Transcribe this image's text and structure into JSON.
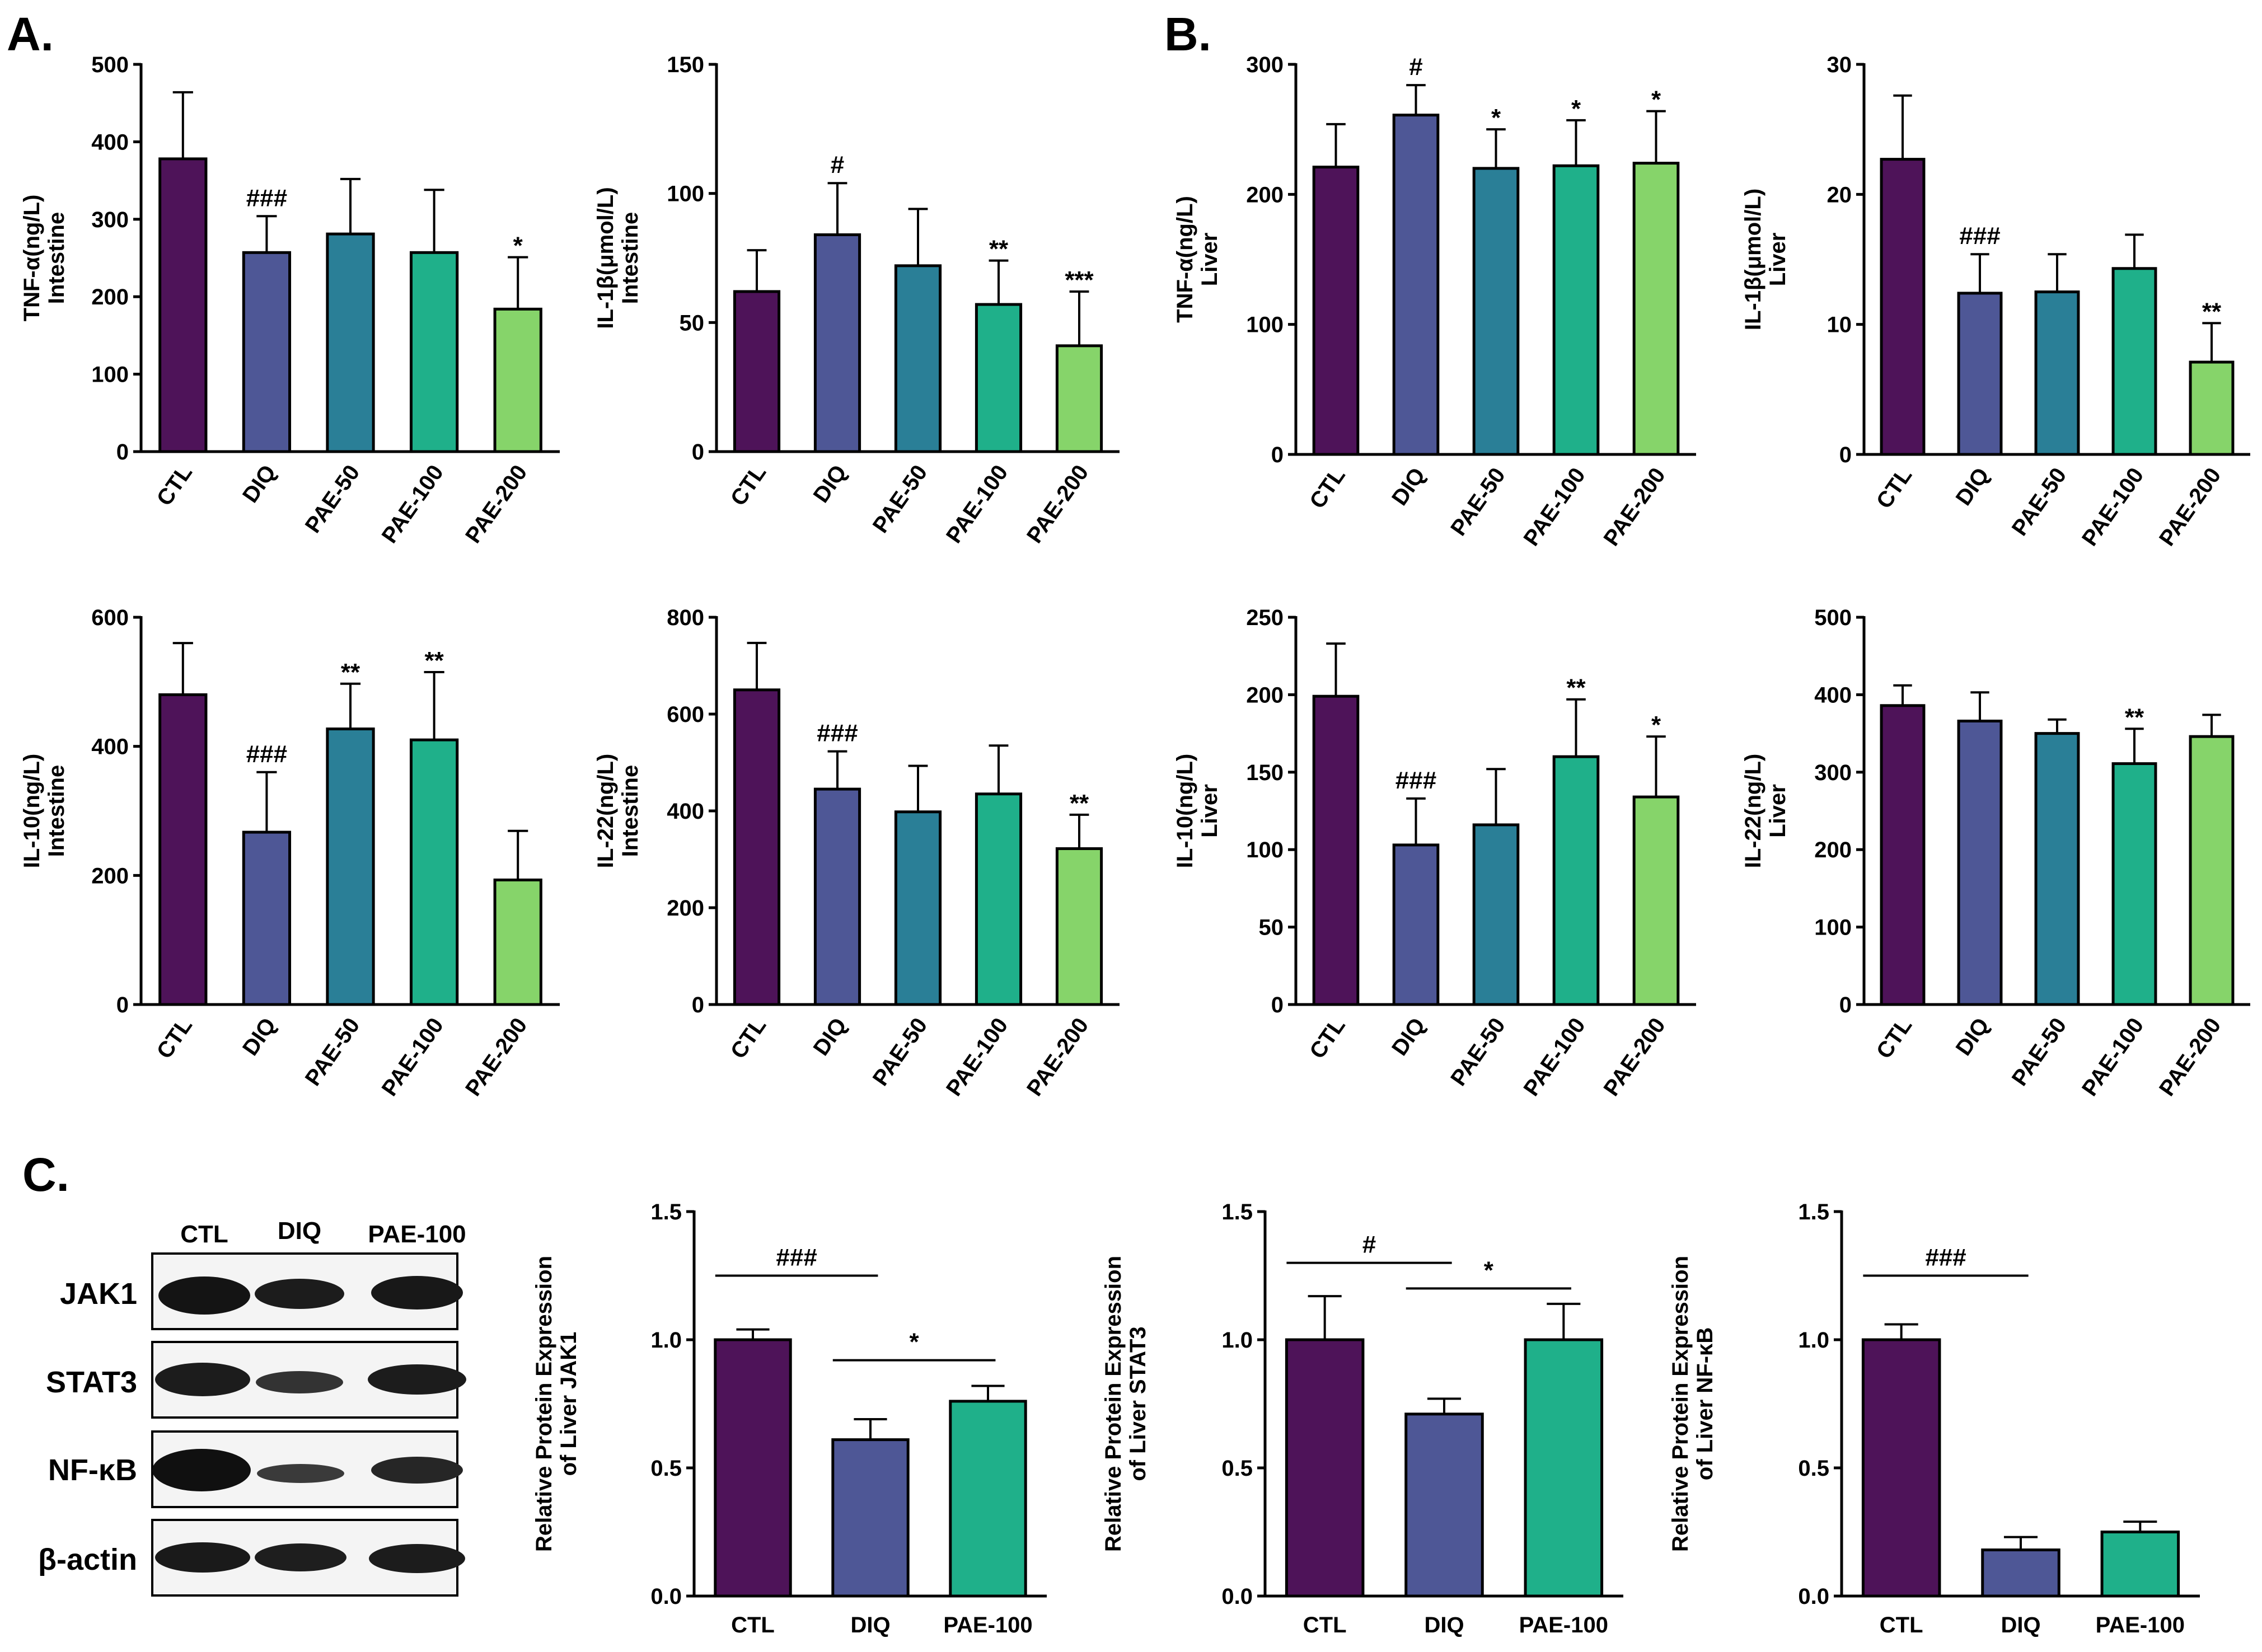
{
  "panel_labels": {
    "a": "A.",
    "b": "B.",
    "c": "C."
  },
  "colors": {
    "CTL": "#4e1359",
    "DIQ": "#4e5796",
    "PAE-50": "#2a7f97",
    "PAE-100": "#1fb08a",
    "PAE-200": "#86d46a",
    "axis": "#000000",
    "error": "#000000"
  },
  "blot": {
    "columns": [
      "CTL",
      "DIQ",
      "PAE-100"
    ],
    "rows": [
      "JAK1",
      "STAT3",
      "NF-κB",
      "β-actin"
    ]
  },
  "chart_data": [
    {
      "id": "intestine-tnf",
      "type": "bar",
      "ylabel": [
        "TNF-α(ng/L)",
        "Intestine"
      ],
      "categories": [
        "CTL",
        "DIQ",
        "PAE-50",
        "PAE-100",
        "PAE-200"
      ],
      "values": [
        378,
        257,
        281,
        257,
        184
      ],
      "errors": [
        86,
        47,
        71,
        81,
        67
      ],
      "annotations": [
        "",
        "###",
        "",
        "",
        "*"
      ],
      "ylim": [
        0,
        500
      ],
      "yticks": [
        "0",
        "100",
        "200",
        "300",
        "400",
        "500"
      ]
    },
    {
      "id": "intestine-il1b",
      "type": "bar",
      "ylabel": [
        "IL-1β(μmol/L)",
        "Intestine"
      ],
      "categories": [
        "CTL",
        "DIQ",
        "PAE-50",
        "PAE-100",
        "PAE-200"
      ],
      "values": [
        62,
        84,
        72,
        57,
        41
      ],
      "errors": [
        16,
        20,
        22,
        17,
        21
      ],
      "annotations": [
        "",
        "#",
        "",
        "**",
        "***"
      ],
      "ylim": [
        0,
        150
      ],
      "yticks": [
        "0",
        "50",
        "100",
        "150"
      ]
    },
    {
      "id": "liver-tnf",
      "type": "bar",
      "ylabel": [
        "TNF-α(ng/L)",
        "Liver"
      ],
      "categories": [
        "CTL",
        "DIQ",
        "PAE-50",
        "PAE-100",
        "PAE-200"
      ],
      "values": [
        221,
        261,
        220,
        222,
        224
      ],
      "errors": [
        33,
        23,
        30,
        35,
        40
      ],
      "annotations": [
        "",
        "#",
        "*",
        "*",
        "*"
      ],
      "ylim": [
        0,
        300
      ],
      "yticks": [
        "0",
        "100",
        "200",
        "300"
      ]
    },
    {
      "id": "liver-il1b",
      "type": "bar",
      "ylabel": [
        "IL-1β(μmol/L)",
        "Liver"
      ],
      "categories": [
        "CTL",
        "DIQ",
        "PAE-50",
        "PAE-100",
        "PAE-200"
      ],
      "values": [
        22.7,
        12.4,
        12.5,
        14.3,
        7.1
      ],
      "errors": [
        4.9,
        3.0,
        2.9,
        2.6,
        3.0
      ],
      "annotations": [
        "",
        "###",
        "",
        "",
        "**"
      ],
      "ylim": [
        0,
        30
      ],
      "yticks": [
        "0",
        "10",
        "20",
        "30"
      ]
    },
    {
      "id": "intestine-il10",
      "type": "bar",
      "ylabel": [
        "IL-10(ng/L)",
        "Intestine"
      ],
      "categories": [
        "CTL",
        "DIQ",
        "PAE-50",
        "PAE-100",
        "PAE-200"
      ],
      "values": [
        480,
        267,
        427,
        410,
        193
      ],
      "errors": [
        80,
        93,
        70,
        105,
        76
      ],
      "annotations": [
        "",
        "###",
        "**",
        "**",
        ""
      ],
      "ylim": [
        0,
        600
      ],
      "yticks": [
        "0",
        "200",
        "400",
        "600"
      ]
    },
    {
      "id": "intestine-il22",
      "type": "bar",
      "ylabel": [
        "IL-22(ng/L)",
        "Intestine"
      ],
      "categories": [
        "CTL",
        "DIQ",
        "PAE-50",
        "PAE-100",
        "PAE-200"
      ],
      "values": [
        650,
        445,
        398,
        435,
        322
      ],
      "errors": [
        97,
        78,
        95,
        100,
        70
      ],
      "annotations": [
        "",
        "###",
        "",
        "",
        "**"
      ],
      "ylim": [
        0,
        800
      ],
      "yticks": [
        "0",
        "200",
        "400",
        "600",
        "800"
      ]
    },
    {
      "id": "liver-il10",
      "type": "bar",
      "ylabel": [
        "IL-10(ng/L)",
        "Liver"
      ],
      "categories": [
        "CTL",
        "DIQ",
        "PAE-50",
        "PAE-100",
        "PAE-200"
      ],
      "values": [
        199,
        103,
        116,
        160,
        134
      ],
      "errors": [
        34,
        30,
        36,
        37,
        39
      ],
      "annotations": [
        "",
        "###",
        "",
        "**",
        "*"
      ],
      "ylim": [
        0,
        250
      ],
      "yticks": [
        "0",
        "50",
        "100",
        "150",
        "200",
        "250"
      ]
    },
    {
      "id": "liver-il22",
      "type": "bar",
      "ylabel": [
        "IL-22(ng/L)",
        "Liver"
      ],
      "categories": [
        "CTL",
        "DIQ",
        "PAE-50",
        "PAE-100",
        "PAE-200"
      ],
      "values": [
        386,
        366,
        350,
        311,
        346
      ],
      "errors": [
        26,
        37,
        18,
        45,
        28
      ],
      "annotations": [
        "",
        "",
        "",
        "**",
        ""
      ],
      "ylim": [
        0,
        500
      ],
      "yticks": [
        "0",
        "100",
        "200",
        "300",
        "400",
        "500"
      ]
    },
    {
      "id": "protein-jak1",
      "type": "bar",
      "ylabel": [
        "Relative Protein Expression",
        "of  Liver JAK1"
      ],
      "categories": [
        "CTL",
        "DIQ",
        "PAE-100"
      ],
      "values": [
        1.0,
        0.61,
        0.76
      ],
      "errors": [
        0.04,
        0.08,
        0.06
      ],
      "annotations": [
        "",
        "",
        ""
      ],
      "brackets": [
        {
          "from": 0,
          "to": 1,
          "label": "###",
          "level": 1.25
        },
        {
          "from": 1,
          "to": 2,
          "label": "*",
          "level": 0.92
        }
      ],
      "ylim": [
        0,
        1.5
      ],
      "yticks": [
        "0.0",
        "0.5",
        "1.0",
        "1.5"
      ]
    },
    {
      "id": "protein-stat3",
      "type": "bar",
      "ylabel": [
        "Relative Protein Expression",
        "of  Liver STAT3"
      ],
      "categories": [
        "CTL",
        "DIQ",
        "PAE-100"
      ],
      "values": [
        1.0,
        0.71,
        1.0
      ],
      "errors": [
        0.17,
        0.06,
        0.14
      ],
      "annotations": [
        "",
        "",
        ""
      ],
      "brackets": [
        {
          "from": 0,
          "to": 1,
          "label": "#",
          "level": 1.3
        },
        {
          "from": 1,
          "to": 2,
          "label": "*",
          "level": 1.2
        }
      ],
      "ylim": [
        0,
        1.5
      ],
      "yticks": [
        "0.0",
        "0.5",
        "1.0",
        "1.5"
      ]
    },
    {
      "id": "protein-nfkb",
      "type": "bar",
      "ylabel": [
        "Relative Protein Expression",
        "of  Liver NF-κB"
      ],
      "categories": [
        "CTL",
        "DIQ",
        "PAE-100"
      ],
      "values": [
        1.0,
        0.18,
        0.25
      ],
      "errors": [
        0.06,
        0.05,
        0.04
      ],
      "annotations": [
        "",
        "",
        ""
      ],
      "brackets": [
        {
          "from": 0,
          "to": 1,
          "label": "###",
          "level": 1.25
        }
      ],
      "ylim": [
        0,
        1.5
      ],
      "yticks": [
        "0.0",
        "0.5",
        "1.0",
        "1.5"
      ]
    }
  ]
}
